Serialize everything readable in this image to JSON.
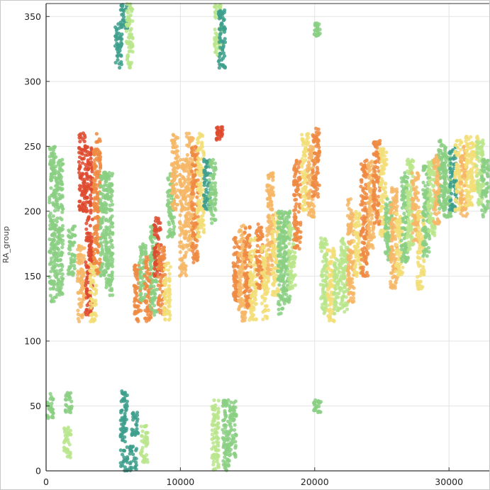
{
  "chart_data": {
    "type": "scatter",
    "title": "",
    "xlabel": "",
    "ylabel": "RA_group",
    "xlim": [
      0,
      33000
    ],
    "ylim": [
      0,
      360
    ],
    "xticks": [
      0,
      10000,
      20000,
      30000
    ],
    "yticks": [
      0,
      50,
      100,
      150,
      200,
      250,
      300,
      350
    ],
    "grid": true,
    "legend": "none",
    "colors": {
      "teal": "#3d9f8c",
      "green": "#89cf83",
      "light_green": "#b9e58b",
      "yellow": "#f2de78",
      "light_orange": "#f6b766",
      "orange": "#ee8a42",
      "red": "#de4a2e"
    },
    "clusters": [
      {
        "x": 500,
        "y_range": [
          130,
          250
        ],
        "color": "green"
      },
      {
        "x": 1000,
        "y_range": [
          135,
          240
        ],
        "color": "green"
      },
      {
        "x": 300,
        "y_range": [
          40,
          60
        ],
        "color": "green"
      },
      {
        "x": 1600,
        "y_range": [
          10,
          35
        ],
        "color": "light_green"
      },
      {
        "x": 1700,
        "y_range": [
          45,
          62
        ],
        "color": "green"
      },
      {
        "x": 1900,
        "y_range": [
          150,
          190
        ],
        "color": "green"
      },
      {
        "x": 2600,
        "y_range": [
          115,
          175
        ],
        "color": "light_orange"
      },
      {
        "x": 2700,
        "y_range": [
          200,
          262
        ],
        "color": "red"
      },
      {
        "x": 3200,
        "y_range": [
          120,
          250
        ],
        "color": "red"
      },
      {
        "x": 3500,
        "y_range": [
          115,
          160
        ],
        "color": "yellow"
      },
      {
        "x": 3800,
        "y_range": [
          150,
          260
        ],
        "color": "orange"
      },
      {
        "x": 4300,
        "y_range": [
          150,
          230
        ],
        "color": "green"
      },
      {
        "x": 4700,
        "y_range": [
          135,
          230
        ],
        "color": "green"
      },
      {
        "x": 5400,
        "y_range": [
          310,
          345
        ],
        "color": "teal"
      },
      {
        "x": 5800,
        "y_range": [
          340,
          360
        ],
        "color": "teal"
      },
      {
        "x": 5800,
        "y_range": [
          0,
          62
        ],
        "color": "teal"
      },
      {
        "x": 6200,
        "y_range": [
          310,
          360
        ],
        "color": "light_green"
      },
      {
        "x": 6500,
        "y_range": [
          0,
          20
        ],
        "color": "teal"
      },
      {
        "x": 6600,
        "y_range": [
          25,
          45
        ],
        "color": "teal"
      },
      {
        "x": 6800,
        "y_range": [
          115,
          160
        ],
        "color": "orange"
      },
      {
        "x": 7200,
        "y_range": [
          130,
          175
        ],
        "color": "green"
      },
      {
        "x": 7300,
        "y_range": [
          5,
          35
        ],
        "color": "light_green"
      },
      {
        "x": 7600,
        "y_range": [
          115,
          165
        ],
        "color": "orange"
      },
      {
        "x": 8000,
        "y_range": [
          120,
          190
        ],
        "color": "green"
      },
      {
        "x": 8300,
        "y_range": [
          150,
          195
        ],
        "color": "red"
      },
      {
        "x": 8600,
        "y_range": [
          120,
          175
        ],
        "color": "orange"
      },
      {
        "x": 9000,
        "y_range": [
          115,
          160
        ],
        "color": "yellow"
      },
      {
        "x": 9300,
        "y_range": [
          180,
          230
        ],
        "color": "green"
      },
      {
        "x": 9600,
        "y_range": [
          200,
          260
        ],
        "color": "light_orange"
      },
      {
        "x": 10200,
        "y_range": [
          150,
          240
        ],
        "color": "light_orange"
      },
      {
        "x": 10700,
        "y_range": [
          170,
          260
        ],
        "color": "light_orange"
      },
      {
        "x": 11100,
        "y_range": [
          160,
          250
        ],
        "color": "orange"
      },
      {
        "x": 11500,
        "y_range": [
          180,
          260
        ],
        "color": "yellow"
      },
      {
        "x": 12000,
        "y_range": [
          200,
          240
        ],
        "color": "teal"
      },
      {
        "x": 12400,
        "y_range": [
          190,
          240
        ],
        "color": "green"
      },
      {
        "x": 12900,
        "y_range": [
          255,
          265
        ],
        "color": "red"
      },
      {
        "x": 12600,
        "y_range": [
          0,
          55
        ],
        "color": "light_green"
      },
      {
        "x": 12800,
        "y_range": [
          320,
          360
        ],
        "color": "light_green"
      },
      {
        "x": 13100,
        "y_range": [
          310,
          355
        ],
        "color": "teal"
      },
      {
        "x": 13400,
        "y_range": [
          0,
          55
        ],
        "color": "green"
      },
      {
        "x": 13900,
        "y_range": [
          10,
          55
        ],
        "color": "green"
      },
      {
        "x": 14200,
        "y_range": [
          130,
          180
        ],
        "color": "orange"
      },
      {
        "x": 14600,
        "y_range": [
          115,
          190
        ],
        "color": "light_orange"
      },
      {
        "x": 15000,
        "y_range": [
          125,
          190
        ],
        "color": "orange"
      },
      {
        "x": 15400,
        "y_range": [
          115,
          180
        ],
        "color": "yellow"
      },
      {
        "x": 15900,
        "y_range": [
          140,
          190
        ],
        "color": "orange"
      },
      {
        "x": 16300,
        "y_range": [
          115,
          175
        ],
        "color": "yellow"
      },
      {
        "x": 16700,
        "y_range": [
          150,
          230
        ],
        "color": "light_orange"
      },
      {
        "x": 17100,
        "y_range": [
          135,
          200
        ],
        "color": "yellow"
      },
      {
        "x": 17500,
        "y_range": [
          120,
          200
        ],
        "color": "green"
      },
      {
        "x": 17900,
        "y_range": [
          130,
          200
        ],
        "color": "green"
      },
      {
        "x": 18300,
        "y_range": [
          140,
          190
        ],
        "color": "light_green"
      },
      {
        "x": 18700,
        "y_range": [
          170,
          240
        ],
        "color": "orange"
      },
      {
        "x": 19300,
        "y_range": [
          200,
          260
        ],
        "color": "yellow"
      },
      {
        "x": 19700,
        "y_range": [
          195,
          250
        ],
        "color": "light_orange"
      },
      {
        "x": 20100,
        "y_range": [
          210,
          265
        ],
        "color": "orange"
      },
      {
        "x": 20200,
        "y_range": [
          45,
          55
        ],
        "color": "green"
      },
      {
        "x": 20200,
        "y_range": [
          335,
          345
        ],
        "color": "green"
      },
      {
        "x": 20700,
        "y_range": [
          120,
          180
        ],
        "color": "light_green"
      },
      {
        "x": 21200,
        "y_range": [
          115,
          175
        ],
        "color": "yellow"
      },
      {
        "x": 21700,
        "y_range": [
          120,
          165
        ],
        "color": "light_green"
      },
      {
        "x": 22200,
        "y_range": [
          120,
          180
        ],
        "color": "light_green"
      },
      {
        "x": 22700,
        "y_range": [
          130,
          210
        ],
        "color": "light_orange"
      },
      {
        "x": 23200,
        "y_range": [
          150,
          200
        ],
        "color": "yellow"
      },
      {
        "x": 23700,
        "y_range": [
          150,
          240
        ],
        "color": "orange"
      },
      {
        "x": 24200,
        "y_range": [
          170,
          240
        ],
        "color": "light_orange"
      },
      {
        "x": 24600,
        "y_range": [
          190,
          255
        ],
        "color": "orange"
      },
      {
        "x": 25100,
        "y_range": [
          180,
          250
        ],
        "color": "yellow"
      },
      {
        "x": 25500,
        "y_range": [
          160,
          210
        ],
        "color": "green"
      },
      {
        "x": 25900,
        "y_range": [
          140,
          220
        ],
        "color": "light_orange"
      },
      {
        "x": 26300,
        "y_range": [
          150,
          200
        ],
        "color": "yellow"
      },
      {
        "x": 26700,
        "y_range": [
          160,
          230
        ],
        "color": "green"
      },
      {
        "x": 27100,
        "y_range": [
          170,
          240
        ],
        "color": "light_green"
      },
      {
        "x": 27500,
        "y_range": [
          175,
          230
        ],
        "color": "light_orange"
      },
      {
        "x": 27900,
        "y_range": [
          140,
          200
        ],
        "color": "yellow"
      },
      {
        "x": 28300,
        "y_range": [
          165,
          235
        ],
        "color": "green"
      },
      {
        "x": 28700,
        "y_range": [
          180,
          240
        ],
        "color": "light_green"
      },
      {
        "x": 29100,
        "y_range": [
          190,
          245
        ],
        "color": "light_orange"
      },
      {
        "x": 29500,
        "y_range": [
          200,
          255
        ],
        "color": "green"
      },
      {
        "x": 29900,
        "y_range": [
          195,
          245
        ],
        "color": "green"
      },
      {
        "x": 30300,
        "y_range": [
          200,
          250
        ],
        "color": "teal"
      },
      {
        "x": 30700,
        "y_range": [
          200,
          255
        ],
        "color": "yellow"
      },
      {
        "x": 31100,
        "y_range": [
          195,
          250
        ],
        "color": "light_orange"
      },
      {
        "x": 31500,
        "y_range": [
          200,
          258
        ],
        "color": "yellow"
      },
      {
        "x": 31900,
        "y_range": [
          215,
          258
        ],
        "color": "yellow"
      },
      {
        "x": 32300,
        "y_range": [
          205,
          255
        ],
        "color": "light_green"
      },
      {
        "x": 32700,
        "y_range": [
          195,
          240
        ],
        "color": "green"
      }
    ]
  }
}
